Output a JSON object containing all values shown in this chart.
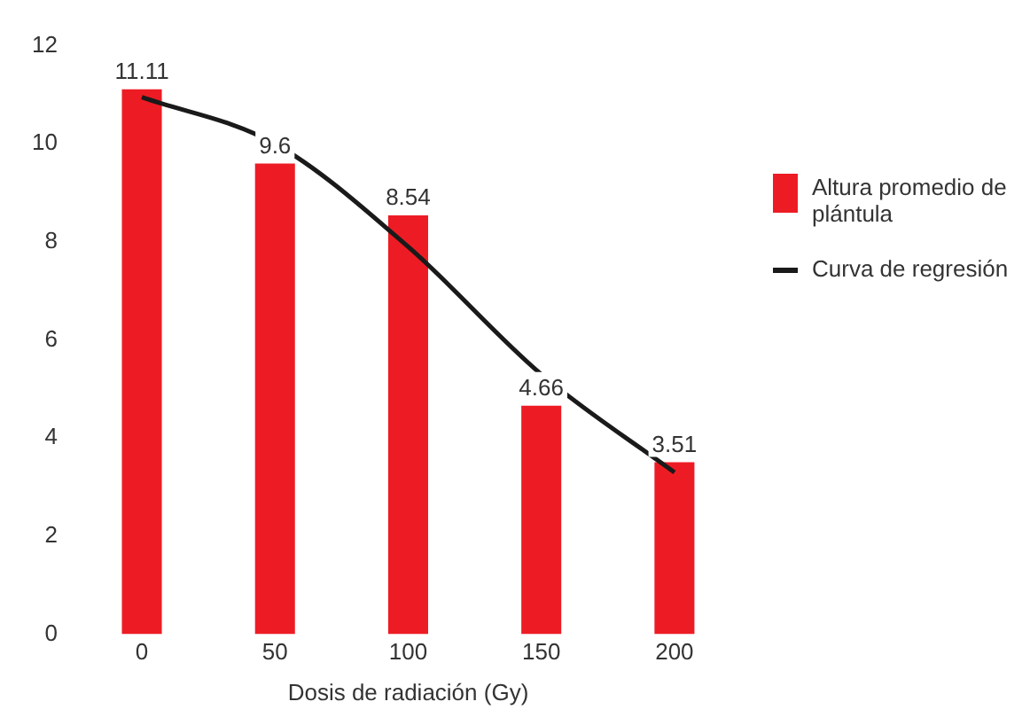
{
  "chart_data": {
    "type": "bar",
    "xlabel": "Dosis de radiación (Gy)",
    "categories": [
      "0",
      "50",
      "100",
      "150",
      "200"
    ],
    "series": [
      {
        "name": "Altura promedio de plántula",
        "color": "#ed1c24",
        "values": [
          11.11,
          9.6,
          8.54,
          4.66,
          3.51
        ]
      },
      {
        "name": "Curva de regresión",
        "type": "line",
        "color": "#1a1a1a",
        "values": [
          10.95,
          10.0,
          7.9,
          5.3,
          3.3
        ],
        "marker": "none",
        "line_style": "solid"
      }
    ],
    "value_labels": [
      "11.11",
      "9.6",
      "8.54",
      "4.66",
      "3.51"
    ],
    "ylim": [
      0,
      12
    ],
    "yticks": [
      0,
      2,
      4,
      6,
      8,
      10,
      12
    ],
    "grid": false,
    "legend": "right"
  }
}
